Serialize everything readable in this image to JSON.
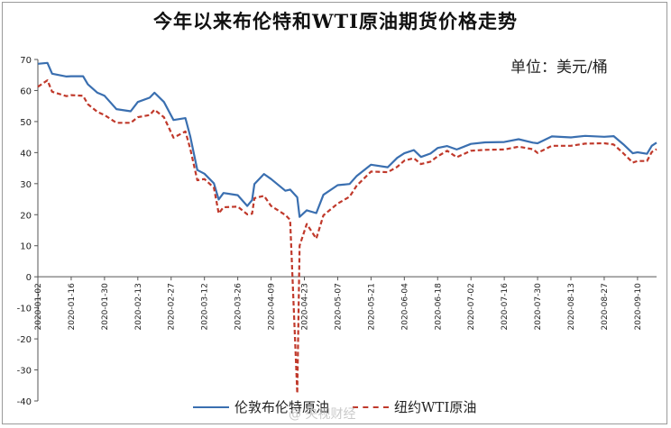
{
  "title": "今年以来布伦特和WTI原油期货价格走势",
  "unit_label": "单位：美元/桶",
  "watermark": "@ 央视财经",
  "colors": {
    "brent": "#3a6fb0",
    "wti": "#c0392b",
    "axis": "#555555"
  },
  "chart_data": {
    "type": "line",
    "title": "今年以来布伦特和WTI原油期货价格走势",
    "xlabel": "",
    "ylabel": "单位：美元/桶",
    "ylim": [
      -40,
      70
    ],
    "yticks": [
      70,
      60,
      50,
      40,
      30,
      20,
      10,
      0,
      -10,
      -20,
      -30,
      -40
    ],
    "xticks": [
      "2020-01-02",
      "2020-01-16",
      "2020-01-30",
      "2020-02-13",
      "2020-02-27",
      "2020-03-12",
      "2020-03-26",
      "2020-04-09",
      "2020-04-23",
      "2020-05-07",
      "2020-05-21",
      "2020-06-04",
      "2020-06-18",
      "2020-07-02",
      "2020-07-16",
      "2020-07-30",
      "2020-08-13",
      "2020-08-27",
      "2020-09-10"
    ],
    "x_end": "2020-09-18",
    "grid": false,
    "legend": "bottom",
    "series": [
      {
        "name": "伦敦布伦特原油",
        "style": "solid",
        "points": [
          [
            "2020-01-02",
            68.6
          ],
          [
            "2020-01-06",
            68.9
          ],
          [
            "2020-01-08",
            65.4
          ],
          [
            "2020-01-14",
            64.5
          ],
          [
            "2020-01-16",
            64.6
          ],
          [
            "2020-01-21",
            64.6
          ],
          [
            "2020-01-23",
            62.0
          ],
          [
            "2020-01-27",
            59.3
          ],
          [
            "2020-01-30",
            58.3
          ],
          [
            "2020-02-04",
            54.0
          ],
          [
            "2020-02-10",
            53.3
          ],
          [
            "2020-02-13",
            56.3
          ],
          [
            "2020-02-18",
            57.7
          ],
          [
            "2020-02-20",
            59.3
          ],
          [
            "2020-02-24",
            56.3
          ],
          [
            "2020-02-28",
            50.5
          ],
          [
            "2020-03-04",
            51.1
          ],
          [
            "2020-03-06",
            45.3
          ],
          [
            "2020-03-09",
            34.4
          ],
          [
            "2020-03-12",
            33.2
          ],
          [
            "2020-03-16",
            30.1
          ],
          [
            "2020-03-18",
            24.9
          ],
          [
            "2020-03-20",
            27.0
          ],
          [
            "2020-03-26",
            26.3
          ],
          [
            "2020-03-30",
            22.8
          ],
          [
            "2020-04-01",
            24.7
          ],
          [
            "2020-04-02",
            29.9
          ],
          [
            "2020-04-06",
            33.1
          ],
          [
            "2020-04-09",
            31.5
          ],
          [
            "2020-04-15",
            27.7
          ],
          [
            "2020-04-17",
            28.1
          ],
          [
            "2020-04-20",
            25.6
          ],
          [
            "2020-04-21",
            19.3
          ],
          [
            "2020-04-24",
            21.4
          ],
          [
            "2020-04-28",
            20.5
          ],
          [
            "2020-05-01",
            26.4
          ],
          [
            "2020-05-07",
            29.5
          ],
          [
            "2020-05-12",
            29.9
          ],
          [
            "2020-05-15",
            32.5
          ],
          [
            "2020-05-21",
            36.1
          ],
          [
            "2020-05-28",
            35.3
          ],
          [
            "2020-06-01",
            38.3
          ],
          [
            "2020-06-04",
            39.8
          ],
          [
            "2020-06-08",
            40.8
          ],
          [
            "2020-06-11",
            38.6
          ],
          [
            "2020-06-15",
            39.7
          ],
          [
            "2020-06-18",
            41.5
          ],
          [
            "2020-06-22",
            42.1
          ],
          [
            "2020-06-26",
            41.0
          ],
          [
            "2020-07-02",
            42.8
          ],
          [
            "2020-07-08",
            43.3
          ],
          [
            "2020-07-16",
            43.4
          ],
          [
            "2020-07-22",
            44.3
          ],
          [
            "2020-07-28",
            43.2
          ],
          [
            "2020-07-30",
            43.0
          ],
          [
            "2020-08-05",
            45.2
          ],
          [
            "2020-08-13",
            44.9
          ],
          [
            "2020-08-19",
            45.4
          ],
          [
            "2020-08-27",
            45.1
          ],
          [
            "2020-08-31",
            45.3
          ],
          [
            "2020-09-04",
            42.7
          ],
          [
            "2020-09-08",
            39.8
          ],
          [
            "2020-09-10",
            40.1
          ],
          [
            "2020-09-14",
            39.6
          ],
          [
            "2020-09-16",
            42.2
          ],
          [
            "2020-09-18",
            43.2
          ]
        ]
      },
      {
        "name": "纽约WTI原油",
        "style": "dashed",
        "points": [
          [
            "2020-01-02",
            61.2
          ],
          [
            "2020-01-06",
            63.3
          ],
          [
            "2020-01-08",
            59.6
          ],
          [
            "2020-01-14",
            58.2
          ],
          [
            "2020-01-16",
            58.5
          ],
          [
            "2020-01-21",
            58.3
          ],
          [
            "2020-01-23",
            55.6
          ],
          [
            "2020-01-27",
            53.1
          ],
          [
            "2020-01-30",
            52.1
          ],
          [
            "2020-02-04",
            49.6
          ],
          [
            "2020-02-10",
            49.6
          ],
          [
            "2020-02-13",
            51.4
          ],
          [
            "2020-02-18",
            52.1
          ],
          [
            "2020-02-20",
            53.8
          ],
          [
            "2020-02-24",
            51.4
          ],
          [
            "2020-02-28",
            44.8
          ],
          [
            "2020-03-04",
            46.8
          ],
          [
            "2020-03-06",
            41.3
          ],
          [
            "2020-03-09",
            31.1
          ],
          [
            "2020-03-12",
            31.5
          ],
          [
            "2020-03-16",
            28.7
          ],
          [
            "2020-03-18",
            20.4
          ],
          [
            "2020-03-20",
            22.4
          ],
          [
            "2020-03-26",
            22.6
          ],
          [
            "2020-03-30",
            20.1
          ],
          [
            "2020-04-01",
            20.3
          ],
          [
            "2020-04-02",
            25.3
          ],
          [
            "2020-04-06",
            26.1
          ],
          [
            "2020-04-09",
            22.8
          ],
          [
            "2020-04-15",
            19.9
          ],
          [
            "2020-04-17",
            18.3
          ],
          [
            "2020-04-20",
            -37.6
          ],
          [
            "2020-04-21",
            10.0
          ],
          [
            "2020-04-24",
            17.0
          ],
          [
            "2020-04-28",
            12.3
          ],
          [
            "2020-05-01",
            19.8
          ],
          [
            "2020-05-07",
            23.6
          ],
          [
            "2020-05-12",
            25.8
          ],
          [
            "2020-05-15",
            29.4
          ],
          [
            "2020-05-21",
            33.9
          ],
          [
            "2020-05-28",
            33.7
          ],
          [
            "2020-06-01",
            35.4
          ],
          [
            "2020-06-04",
            37.4
          ],
          [
            "2020-06-08",
            38.2
          ],
          [
            "2020-06-11",
            36.3
          ],
          [
            "2020-06-15",
            37.1
          ],
          [
            "2020-06-18",
            38.8
          ],
          [
            "2020-06-22",
            40.6
          ],
          [
            "2020-06-26",
            38.5
          ],
          [
            "2020-07-02",
            40.6
          ],
          [
            "2020-07-08",
            40.9
          ],
          [
            "2020-07-16",
            41.0
          ],
          [
            "2020-07-22",
            41.9
          ],
          [
            "2020-07-28",
            41.1
          ],
          [
            "2020-07-30",
            39.9
          ],
          [
            "2020-08-05",
            42.2
          ],
          [
            "2020-08-13",
            42.2
          ],
          [
            "2020-08-19",
            42.9
          ],
          [
            "2020-08-27",
            43.0
          ],
          [
            "2020-08-31",
            42.6
          ],
          [
            "2020-09-04",
            39.8
          ],
          [
            "2020-09-08",
            36.8
          ],
          [
            "2020-09-10",
            37.3
          ],
          [
            "2020-09-14",
            37.3
          ],
          [
            "2020-09-16",
            40.2
          ],
          [
            "2020-09-18",
            41.1
          ]
        ]
      }
    ]
  }
}
